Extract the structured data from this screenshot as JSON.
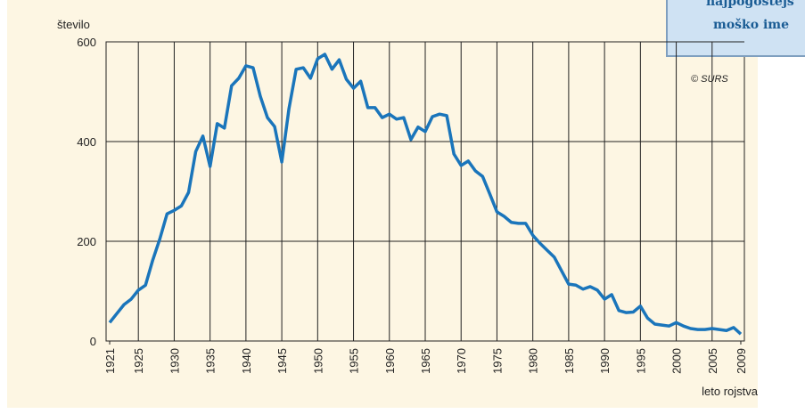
{
  "chart_data": {
    "type": "line",
    "y_label": "število",
    "x_label": "leto rojstva",
    "source": "© SURS",
    "box_title": [
      "najpogostejš",
      "moško ime"
    ],
    "x": [
      1921,
      1922,
      1923,
      1924,
      1925,
      1926,
      1927,
      1928,
      1929,
      1930,
      1931,
      1932,
      1933,
      1934,
      1935,
      1936,
      1937,
      1938,
      1939,
      1940,
      1941,
      1942,
      1943,
      1944,
      1945,
      1946,
      1947,
      1948,
      1949,
      1950,
      1951,
      1952,
      1953,
      1954,
      1955,
      1956,
      1957,
      1958,
      1959,
      1960,
      1961,
      1962,
      1963,
      1964,
      1965,
      1966,
      1967,
      1968,
      1969,
      1970,
      1971,
      1972,
      1973,
      1974,
      1975,
      1976,
      1977,
      1978,
      1979,
      1980,
      1981,
      1982,
      1983,
      1984,
      1985,
      1986,
      1987,
      1988,
      1989,
      1990,
      1991,
      1992,
      1993,
      1994,
      1995,
      1996,
      1997,
      1998,
      1999,
      2000,
      2001,
      2002,
      2003,
      2004,
      2005,
      2006,
      2007,
      2008,
      2009
    ],
    "series": [
      {
        "name": "število",
        "color": "#1a75bb",
        "values": [
          37,
          55,
          73,
          84,
          102,
          112,
          162,
          205,
          255,
          262,
          271,
          298,
          380,
          411,
          350,
          436,
          427,
          512,
          527,
          552,
          548,
          491,
          448,
          430,
          359,
          466,
          545,
          548,
          527,
          566,
          575,
          545,
          564,
          525,
          507,
          521,
          468,
          468,
          448,
          455,
          445,
          448,
          404,
          429,
          420,
          450,
          455,
          452,
          375,
          352,
          361,
          341,
          330,
          295,
          259,
          250,
          238,
          236,
          236,
          212,
          196,
          182,
          168,
          141,
          114,
          112,
          104,
          109,
          102,
          84,
          93,
          61,
          57,
          58,
          70,
          46,
          34,
          32,
          30,
          37,
          30,
          25,
          23,
          23,
          25,
          23,
          21,
          27,
          14
        ]
      }
    ],
    "xlim": [
      1920.5,
      2009.5
    ],
    "xticks": [
      1921,
      1925,
      1930,
      1935,
      1940,
      1945,
      1950,
      1955,
      1960,
      1965,
      1970,
      1975,
      1980,
      1985,
      1990,
      1995,
      2000,
      2005,
      2009
    ],
    "ylim": [
      0,
      600
    ],
    "yticks": [
      0,
      200,
      400,
      600
    ],
    "grid": true
  }
}
